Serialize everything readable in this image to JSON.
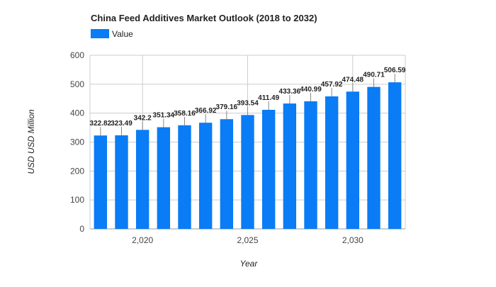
{
  "chart_data": {
    "type": "bar",
    "title": "China Feed Additives Market Outlook (2018 to 2032)",
    "xlabel": "Year",
    "ylabel": "USD USD Million",
    "legend": {
      "placement": "top-left",
      "entries": [
        "Value"
      ]
    },
    "series": [
      {
        "name": "Value",
        "color": "#0a7cf5",
        "x": [
          2018,
          2019,
          2020,
          2021,
          2022,
          2023,
          2024,
          2025,
          2026,
          2027,
          2028,
          2029,
          2030,
          2031,
          2032
        ],
        "values": [
          322.82,
          323.49,
          342.2,
          351.34,
          358.16,
          366.92,
          379.16,
          393.54,
          411.49,
          433.36,
          440.99,
          457.92,
          474.48,
          490.71,
          506.59
        ],
        "labels": [
          "322.82",
          "323.49",
          "342.2",
          "351.34",
          "358.16",
          "366.92",
          "379.16",
          "393.54",
          "411.49",
          "433.36",
          "440.99",
          "457.92",
          "474.48",
          "490.71",
          "506.59"
        ]
      }
    ],
    "ylim": [
      0,
      600
    ],
    "yticks": [
      0,
      100,
      200,
      300,
      400,
      500,
      600
    ],
    "xticks": [
      2020,
      2025,
      2030
    ],
    "xtick_labels": [
      "2,020",
      "2,025",
      "2,030"
    ],
    "xlim": [
      2017.5,
      2032.5
    ],
    "grid": true,
    "colors": {
      "grid": "#cccccc",
      "axis_text": "#444444",
      "label_text": "#222222"
    }
  }
}
